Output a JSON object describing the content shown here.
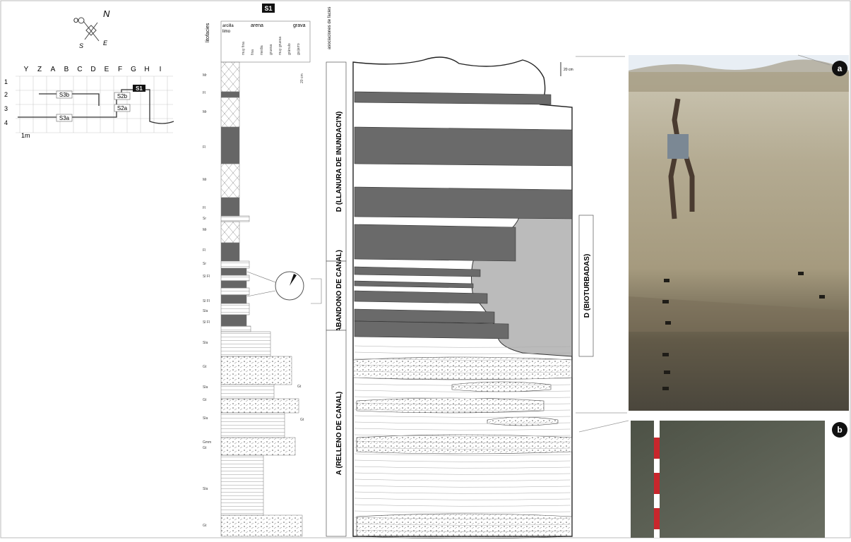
{
  "compass": {
    "n": "N",
    "e": "E",
    "s": "S",
    "o": "O"
  },
  "grid": {
    "columns": [
      "Y",
      "Z",
      "A",
      "B",
      "C",
      "D",
      "E",
      "F",
      "G",
      "H",
      "I"
    ],
    "rows": [
      "1",
      "2",
      "3",
      "4"
    ],
    "labels": [
      "S3b",
      "S3a",
      "S2b",
      "S2a"
    ],
    "active": "S1",
    "scale": "1m"
  },
  "log": {
    "section": "S1",
    "facies_title": "litofacies",
    "header": [
      "arcilla",
      "limo",
      "arena",
      "grava"
    ],
    "sub_header": [
      "muy fina",
      "fina",
      "media",
      "gruesa",
      "muy gruesa",
      "gránulo",
      "guijarro"
    ],
    "scale": "20 cm",
    "facies": [
      "Mr",
      "Fl",
      "Mr",
      "Fl",
      "Mr",
      "Fl",
      "Sr",
      "Mr",
      "Fl",
      "Sr",
      "Sl Fl",
      "Sl Fl",
      "Sla",
      "Sl Fl",
      "Sla",
      "Gt",
      "Sla",
      "Gt",
      "Sla",
      "Gmm",
      "Gt",
      "Sla",
      "Gt"
    ],
    "side_labels": [
      "Gt",
      "Gt"
    ]
  },
  "associations": {
    "title": "asociaciones de facies",
    "units": [
      "D (LLANURA DE INUNDACI'N)",
      "C (ABANDONO DE CANAL)",
      "A (RELLENO DE CANAL)"
    ],
    "bioturbated": "D (BIOTURBADAS)",
    "scale": "20 cm"
  },
  "photos": {
    "a": "a",
    "b": "b"
  }
}
